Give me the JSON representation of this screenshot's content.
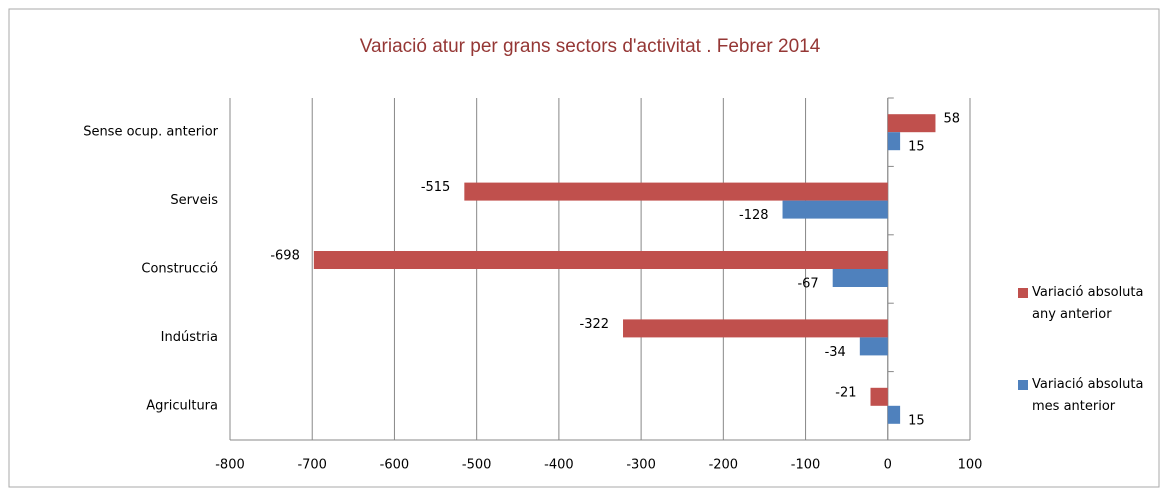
{
  "chart_data": {
    "type": "hbar",
    "title": "Variació atur per grans sectors d'activitat . Febrer 2014",
    "categories": [
      "Sense ocup. anterior",
      "Serveis",
      "Construcció",
      "Indústria",
      "Agricultura"
    ],
    "series": [
      {
        "name": "Variació absoluta any anterior",
        "color": "#c0504d",
        "values": [
          58,
          -515,
          -698,
          -322,
          -21
        ]
      },
      {
        "name": "Variació absoluta mes anterior",
        "color": "#4f81bd",
        "values": [
          15,
          -128,
          -67,
          -34,
          15
        ]
      }
    ],
    "xlim": [
      -800,
      100
    ],
    "xticks": [
      -800,
      -700,
      -600,
      -500,
      -400,
      -300,
      -200,
      -100,
      0,
      100
    ],
    "grid": true,
    "legend": "right"
  }
}
